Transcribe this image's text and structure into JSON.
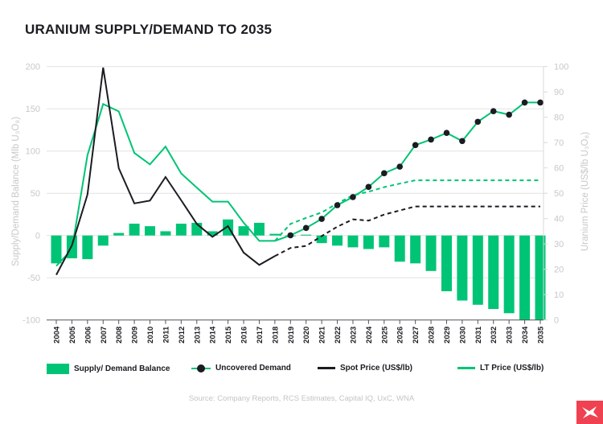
{
  "title": "URANIUM SUPPLY/DEMAND TO 2035",
  "chart_data": {
    "type": "bar+line",
    "title": "URANIUM SUPPLY/DEMAND TO 2035",
    "categories": [
      "2004",
      "2005",
      "2006",
      "2007",
      "2008",
      "2009",
      "2010",
      "2011",
      "2012",
      "2013",
      "2014",
      "2015",
      "2016",
      "2017",
      "2018",
      "2019",
      "2020",
      "2021",
      "2022",
      "2023",
      "2024",
      "2025",
      "2026",
      "2027",
      "2028",
      "2029",
      "2030",
      "2031",
      "2032",
      "2033",
      "2034",
      "2035"
    ],
    "ylabel_left": "Supply/Demand Balance (Mlb U₃O₈)",
    "ylabel_right": "Uranium Price (US$/lb U₃O₈)",
    "ylim_left": [
      -100,
      200
    ],
    "yticks_left": [
      200,
      150,
      100,
      50,
      0,
      -50,
      -100
    ],
    "ylim_right": [
      0,
      100
    ],
    "yticks_right": [
      100,
      90,
      80,
      70,
      60,
      50,
      40,
      30,
      20,
      10,
      0
    ],
    "grid": true,
    "legend_position": "bottom",
    "projection_start": "2018",
    "series": [
      {
        "name": "Supply/ Demand Balance",
        "type": "bar",
        "axis": "left",
        "color": "#00c475",
        "values": [
          -33,
          -27,
          -28,
          -12,
          3,
          14,
          11,
          5,
          14,
          15,
          5,
          19,
          11,
          15,
          2,
          0,
          1,
          -9,
          -12,
          -14,
          -16,
          -14,
          -31,
          -33,
          -42,
          -66,
          -77,
          -82,
          -87,
          -92,
          -100,
          -100
        ]
      },
      {
        "name": "Uncovered Demand",
        "type": "line-markers",
        "axis": "right",
        "color": "#00c475",
        "marker_color": "#1b1b22",
        "values": [
          null,
          null,
          null,
          null,
          null,
          null,
          null,
          null,
          null,
          null,
          null,
          null,
          null,
          null,
          null,
          33.4,
          36.3,
          39.9,
          45.3,
          48.5,
          52.5,
          57.9,
          60.5,
          69,
          71.2,
          73.8,
          70.6,
          78.2,
          82.4,
          81,
          85.8,
          85.8
        ]
      },
      {
        "name": "Spot Price (US$/lb)",
        "type": "line",
        "axis": "right",
        "color": "#1b1b22",
        "values": [
          17.8,
          29.4,
          49.5,
          99.6,
          59.9,
          46,
          47.1,
          56.4,
          47.2,
          37.9,
          32.8,
          37,
          26.6,
          21.7,
          25.2,
          28.4,
          29.2,
          33.1,
          36.8,
          39.7,
          39.2,
          41.6,
          43.2,
          44.8,
          44.8,
          44.8,
          44.8,
          44.8,
          44.8,
          44.8,
          44.8,
          44.8
        ]
      },
      {
        "name": "LT Price (US$/lb)",
        "type": "line",
        "axis": "right",
        "color": "#00c475",
        "values": [
          21.3,
          27.8,
          65,
          85.2,
          82.3,
          65.9,
          61.4,
          68.4,
          57.8,
          52.2,
          46.7,
          46.7,
          38.4,
          31.2,
          31.2,
          37.9,
          40.3,
          42.4,
          46,
          49.2,
          50.6,
          52.4,
          53.8,
          55.1,
          55.1,
          55.1,
          55.1,
          55.1,
          55.1,
          55.1,
          55.1,
          55.1
        ]
      }
    ]
  },
  "legend": {
    "items": [
      "Supply/ Demand Balance",
      "Uncovered Demand",
      "Spot Price (US$/lb)",
      "LT Price (US$/lb)"
    ]
  },
  "source": "Source: Company Reports, RCS Estimates, Capital IQ, UxC, WNA",
  "logo": {
    "color": "#ef4150"
  }
}
